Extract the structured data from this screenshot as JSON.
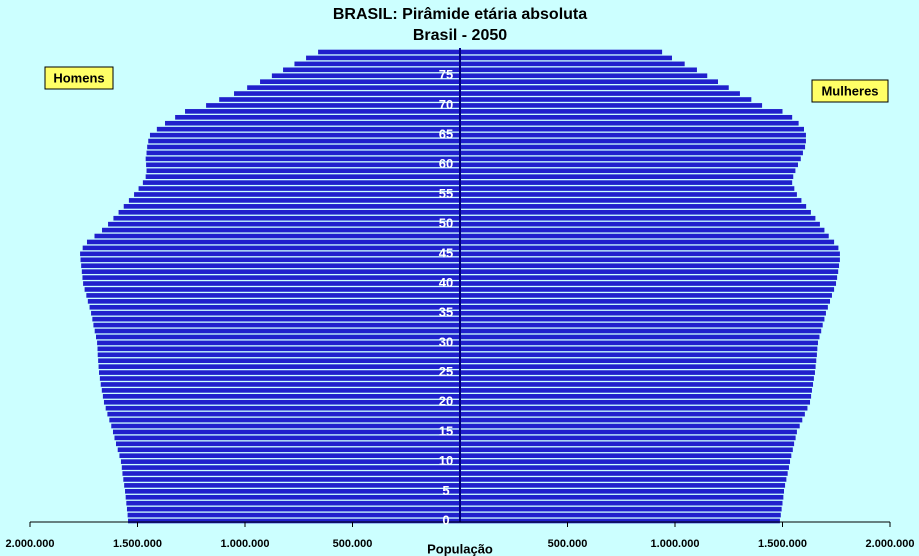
{
  "chart_data": {
    "type": "pyramid",
    "title": "BRASIL: Pirâmide etária absoluta",
    "subtitle": "Brasil - 2050",
    "xlabel": "População",
    "categories": [
      0,
      null,
      null,
      null,
      null,
      5,
      null,
      null,
      null,
      null,
      10,
      null,
      null,
      null,
      null,
      15,
      null,
      null,
      null,
      null,
      20,
      null,
      null,
      null,
      null,
      25,
      null,
      null,
      null,
      null,
      30,
      null,
      null,
      null,
      null,
      35,
      null,
      null,
      null,
      null,
      40,
      null,
      null,
      null,
      null,
      45,
      null,
      null,
      null,
      null,
      50,
      null,
      null,
      null,
      null,
      55,
      null,
      null,
      null,
      null,
      60,
      null,
      null,
      null,
      null,
      65,
      null,
      null,
      null,
      null,
      70,
      null,
      null,
      null,
      null,
      75,
      null,
      null,
      null,
      null
    ],
    "series": [
      {
        "name": "Homens",
        "color": "#2020cc",
        "side": "left",
        "values": [
          1544000,
          1546000,
          1549000,
          1552000,
          1555000,
          1558000,
          1562000,
          1566000,
          1570000,
          1573000,
          1577000,
          1584000,
          1592000,
          1600000,
          1607000,
          1614000,
          1622000,
          1631000,
          1640000,
          1648000,
          1656000,
          1661000,
          1666000,
          1671000,
          1675000,
          1679000,
          1681000,
          1683000,
          1685000,
          1686000,
          1688000,
          1693000,
          1699000,
          1705000,
          1710000,
          1716000,
          1723000,
          1731000,
          1738000,
          1746000,
          1753000,
          1756000,
          1759000,
          1762000,
          1765000,
          1767000,
          1755000,
          1735000,
          1700000,
          1665000,
          1637000,
          1612000,
          1588000,
          1564000,
          1540000,
          1516000,
          1495000,
          1475000,
          1462000,
          1458000,
          1460000,
          1462000,
          1458000,
          1455000,
          1450000,
          1442000,
          1410000,
          1372000,
          1325000,
          1279000,
          1181000,
          1120000,
          1051000,
          990000,
          930000,
          875000,
          823000,
          770000,
          716000,
          660000
        ]
      },
      {
        "name": "Mulheres",
        "color": "#2020cc",
        "side": "right",
        "values": [
          1488000,
          1492000,
          1496000,
          1500000,
          1504000,
          1507000,
          1512000,
          1518000,
          1524000,
          1530000,
          1535000,
          1541000,
          1548000,
          1554000,
          1561000,
          1567000,
          1580000,
          1592000,
          1604000,
          1616000,
          1628000,
          1633000,
          1637000,
          1642000,
          1646000,
          1651000,
          1654000,
          1657000,
          1660000,
          1662000,
          1665000,
          1672000,
          1680000,
          1687000,
          1695000,
          1702000,
          1711000,
          1721000,
          1730000,
          1740000,
          1749000,
          1754000,
          1759000,
          1763000,
          1767000,
          1767000,
          1760000,
          1740000,
          1715000,
          1695000,
          1674000,
          1653000,
          1632000,
          1610000,
          1588000,
          1567000,
          1555000,
          1545000,
          1550000,
          1560000,
          1572000,
          1585000,
          1595000,
          1605000,
          1609000,
          1609000,
          1600000,
          1575000,
          1545000,
          1500000,
          1405000,
          1355000,
          1302000,
          1250000,
          1200000,
          1150000,
          1102000,
          1045000,
          986000,
          940000
        ]
      }
    ],
    "xlim": [
      -2000000,
      2000000
    ],
    "xticks": [
      {
        "value": -2000000,
        "label": "2.000.000"
      },
      {
        "value": -1500000,
        "label": "1.500.000"
      },
      {
        "value": -1000000,
        "label": "1.000.000"
      },
      {
        "value": -500000,
        "label": "500.000"
      },
      {
        "value": 500000,
        "label": "500.000"
      },
      {
        "value": 1000000,
        "label": "1.000.000"
      },
      {
        "value": 1500000,
        "label": "1.500.000"
      },
      {
        "value": 2000000,
        "label": "2.000.000"
      }
    ]
  }
}
